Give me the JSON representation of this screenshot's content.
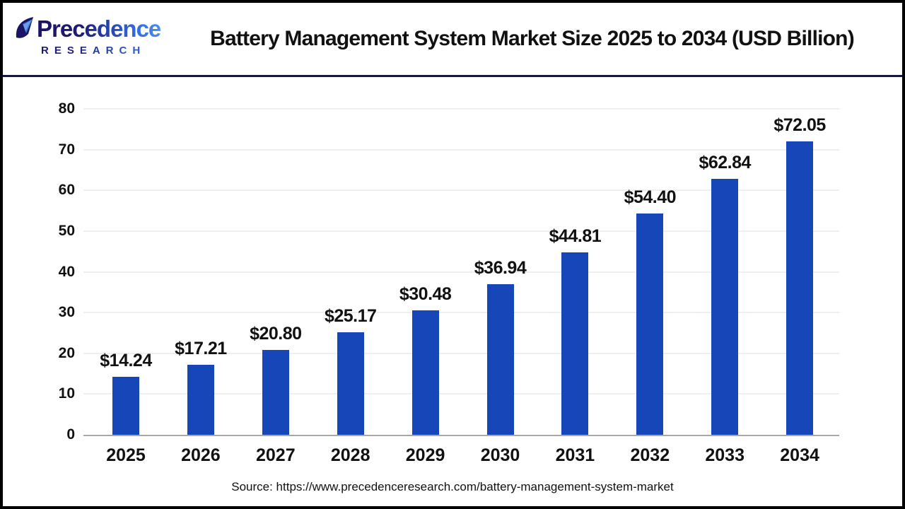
{
  "header": {
    "logo": {
      "name": "Precedence",
      "subtitle": "RESEARCH"
    },
    "title": "Battery Management System Market Size 2025 to 2034 (USD Billion)"
  },
  "chart_data": {
    "type": "bar",
    "title": "Battery Management System Market Size 2025 to 2034 (USD Billion)",
    "categories": [
      "2025",
      "2026",
      "2027",
      "2028",
      "2029",
      "2030",
      "2031",
      "2032",
      "2033",
      "2034"
    ],
    "values": [
      14.24,
      17.21,
      20.8,
      25.17,
      30.48,
      36.94,
      44.81,
      54.4,
      62.84,
      72.05
    ],
    "bar_labels": [
      "$14.24",
      "$17.21",
      "$20.80",
      "$25.17",
      "$30.48",
      "$36.94",
      "$44.81",
      "$54.40",
      "$62.84",
      "$72.05"
    ],
    "xlabel": "",
    "ylabel": "",
    "ylim": [
      0,
      80
    ],
    "yticks": [
      0,
      10,
      20,
      30,
      40,
      50,
      60,
      70,
      80
    ],
    "grid": true,
    "legend": "none",
    "colors": {
      "bar": "#1746B9",
      "axis": "#a8a8a8",
      "gridline": "#efefef",
      "text": "#111111"
    }
  },
  "footer": {
    "source": "Source: https://www.precedenceresearch.com/battery-management-system-market"
  },
  "branding": {
    "logo_navy": "#1b1464",
    "logo_blue": "#2f6be0",
    "separator": "#15153d"
  }
}
